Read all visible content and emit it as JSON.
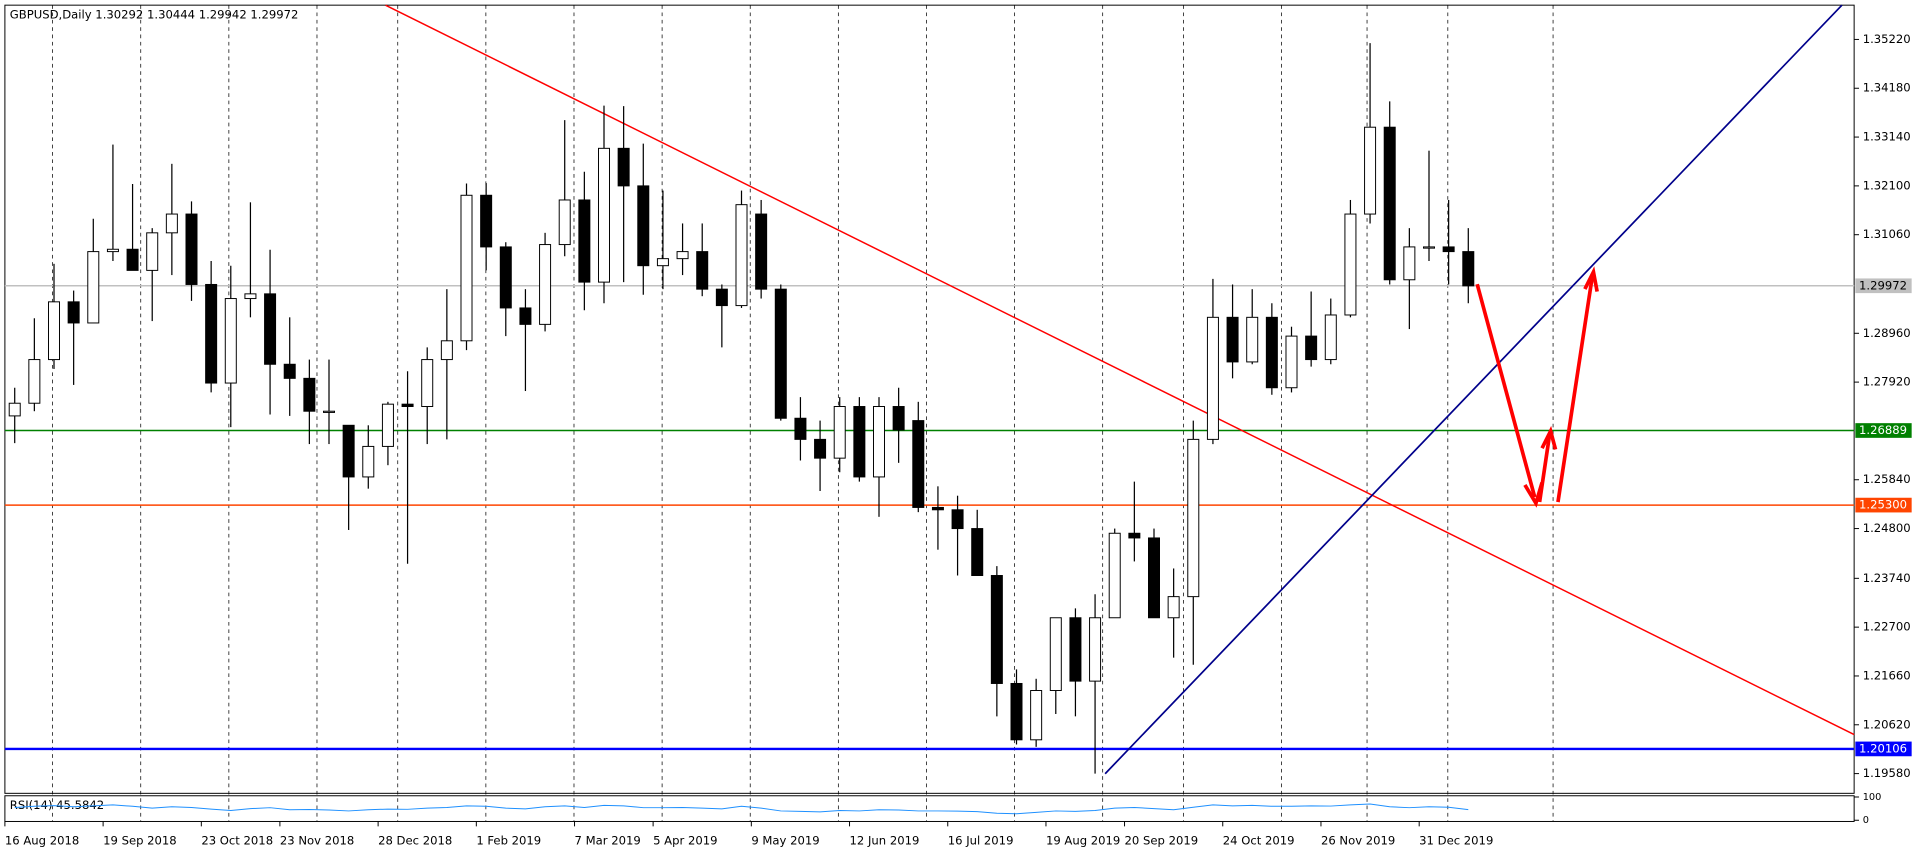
{
  "chart_data": {
    "type": "candlestick",
    "title": "GBPUSD,Daily  1.30292 1.30444 1.29942 1.29972",
    "categories": [
      "16 Aug 2018",
      null,
      null,
      null,
      null,
      "19 Sep 2018",
      null,
      null,
      null,
      null,
      "23 Oct 2018",
      null,
      null,
      null,
      "23 Nov 2018",
      null,
      null,
      null,
      null,
      "28 Dec 2018",
      null,
      null,
      null,
      null,
      "1 Feb 2019",
      null,
      null,
      null,
      null,
      "7 Mar 2019",
      null,
      null,
      null,
      "5 Apr 2019",
      null,
      null,
      null,
      null,
      "9 May 2019",
      null,
      null,
      null,
      null,
      "12 Jun 2019",
      null,
      null,
      null,
      null,
      "16 Jul 2019",
      null,
      null,
      null,
      null,
      "19 Aug 2019",
      null,
      null,
      null,
      "20 Sep 2019",
      null,
      null,
      null,
      null,
      "24 Oct 2019",
      null,
      null,
      null,
      null,
      "26 Nov 2019",
      null,
      null,
      null,
      null,
      "31 Dec 2019",
      null,
      null
    ],
    "open": [
      1.272,
      1.2747,
      1.284,
      1.2963,
      1.2918,
      1.307,
      1.3075,
      1.303,
      1.311,
      1.315,
      1.3,
      1.279,
      1.297,
      1.298,
      1.283,
      1.28,
      1.273,
      1.27,
      1.259,
      1.2655,
      1.2745,
      1.274,
      1.284,
      1.288,
      1.319,
      1.308,
      1.295,
      1.2915,
      1.3085,
      1.318,
      1.3005,
      1.329,
      1.321,
      1.304,
      1.3055,
      1.307,
      1.299,
      1.2955,
      1.315,
      1.299,
      1.2715,
      1.267,
      1.263,
      1.274,
      1.259,
      1.274,
      1.271,
      1.2525,
      1.252,
      1.248,
      1.238,
      1.215,
      1.203,
      1.2135,
      1.229,
      1.2155,
      1.229,
      1.247,
      1.246,
      1.229,
      1.2335,
      1.267,
      1.293,
      1.2835,
      1.293,
      1.278,
      1.289,
      1.284,
      1.2935,
      1.315,
      1.3335,
      1.301,
      1.308,
      1.308,
      1.307
    ],
    "high": [
      1.278,
      1.2928,
      1.3044,
      1.2987,
      1.314,
      1.3298,
      1.3214,
      1.312,
      1.3257,
      1.3177,
      1.305,
      1.304,
      1.3175,
      1.3074,
      1.293,
      1.284,
      1.284,
      1.27,
      1.27,
      1.275,
      1.2815,
      1.2866,
      1.299,
      1.3215,
      1.3216,
      1.309,
      1.299,
      1.311,
      1.335,
      1.324,
      1.3381,
      1.338,
      1.33,
      1.32,
      1.313,
      1.313,
      1.3,
      1.32,
      1.318,
      1.3,
      1.276,
      1.271,
      1.276,
      1.276,
      1.276,
      1.278,
      1.275,
      1.257,
      1.255,
      1.252,
      1.24,
      1.218,
      1.216,
      1.229,
      1.231,
      1.234,
      1.248,
      1.258,
      1.248,
      1.2395,
      1.271,
      1.3012,
      1.3,
      1.299,
      1.296,
      1.291,
      1.2985,
      1.297,
      1.318,
      1.3514,
      1.339,
      1.312,
      1.3285,
      1.318,
      1.312
    ],
    "low": [
      1.2662,
      1.273,
      1.282,
      1.2786,
      1.292,
      1.305,
      1.303,
      1.2922,
      1.302,
      1.2965,
      1.277,
      1.2696,
      1.293,
      1.2723,
      1.272,
      1.266,
      1.266,
      1.2477,
      1.2565,
      1.2615,
      1.2405,
      1.266,
      1.267,
      1.286,
      1.303,
      1.289,
      1.2773,
      1.29,
      1.306,
      1.2945,
      1.296,
      1.3005,
      1.2978,
      1.299,
      1.302,
      1.2975,
      1.2866,
      1.295,
      1.297,
      1.271,
      1.2625,
      1.256,
      1.26,
      1.258,
      1.2505,
      1.262,
      1.2515,
      1.2435,
      1.238,
      1.238,
      1.208,
      1.202,
      1.2015,
      1.2085,
      1.208,
      1.1958,
      1.229,
      1.241,
      1.229,
      1.2205,
      1.219,
      1.266,
      1.28,
      1.283,
      1.2765,
      1.277,
      1.2825,
      1.283,
      1.293,
      1.313,
      1.3,
      1.2905,
      1.305,
      1.3,
      1.296
    ],
    "close": [
      1.2747,
      1.284,
      1.2963,
      1.2918,
      1.307,
      1.3075,
      1.303,
      1.311,
      1.315,
      1.3,
      1.279,
      1.297,
      1.298,
      1.283,
      1.28,
      1.273,
      1.273,
      1.259,
      1.2655,
      1.2745,
      1.274,
      1.284,
      1.288,
      1.319,
      1.308,
      1.295,
      1.2915,
      1.3085,
      1.318,
      1.3005,
      1.329,
      1.321,
      1.304,
      1.3055,
      1.307,
      1.299,
      1.2955,
      1.317,
      1.299,
      1.2715,
      1.267,
      1.263,
      1.274,
      1.259,
      1.274,
      1.269,
      1.2525,
      1.252,
      1.248,
      1.238,
      1.215,
      1.203,
      1.2135,
      1.229,
      1.2155,
      1.229,
      1.247,
      1.246,
      1.229,
      1.2335,
      1.267,
      1.293,
      1.2835,
      1.293,
      1.278,
      1.289,
      1.284,
      1.2935,
      1.315,
      1.3335,
      1.301,
      1.308,
      1.308,
      1.307,
      1.2997
    ],
    "ylim": [
      1.1916,
      1.3595
    ],
    "yticks": [
      {
        "value": 1.3522,
        "label": "1.35220"
      },
      {
        "value": 1.3418,
        "label": "1.34180"
      },
      {
        "value": 1.3314,
        "label": "1.33140"
      },
      {
        "value": 1.321,
        "label": "1.32100"
      },
      {
        "value": 1.3106,
        "label": "1.31060"
      },
      {
        "value": 1.2896,
        "label": "1.28960"
      },
      {
        "value": 1.2792,
        "label": "1.27920"
      },
      {
        "value": 1.2584,
        "label": "1.25840"
      },
      {
        "value": 1.248,
        "label": "1.24800"
      },
      {
        "value": 1.2374,
        "label": "1.23740"
      },
      {
        "value": 1.227,
        "label": "1.22700"
      },
      {
        "value": 1.2166,
        "label": "1.21660"
      },
      {
        "value": 1.2062,
        "label": "1.20620"
      },
      {
        "value": 1.1958,
        "label": "1.19580"
      }
    ],
    "levels": [
      {
        "value": 1.29972,
        "label": "1.29972",
        "color": "#c0c0c0"
      },
      {
        "value": 1.26889,
        "label": "1.26889",
        "color": "#008000"
      },
      {
        "value": 1.253,
        "label": "1.25300",
        "color": "#ff4500"
      },
      {
        "value": 1.20106,
        "label": "1.20106",
        "color": "#0000ff"
      }
    ],
    "indicator": {
      "title": "RSI(14) 45.5842",
      "color": "#1e90ff",
      "ylim": [
        0,
        100
      ],
      "yticks": [
        100,
        0
      ],
      "values": [
        55,
        60,
        63,
        58,
        62,
        66,
        60,
        52,
        58,
        55,
        48,
        42,
        50,
        54,
        45,
        46,
        44,
        40,
        45,
        48,
        47,
        52,
        55,
        62,
        60,
        52,
        49,
        58,
        62,
        55,
        64,
        62,
        54,
        54,
        55,
        52,
        49,
        60,
        52,
        40,
        38,
        36,
        42,
        40,
        45,
        44,
        40,
        40,
        39,
        37,
        30,
        28,
        34,
        40,
        38,
        42,
        52,
        55,
        50,
        45,
        56,
        66,
        62,
        64,
        60,
        60,
        62,
        61,
        66,
        70,
        58,
        54,
        58,
        56,
        45.5842
      ]
    }
  }
}
